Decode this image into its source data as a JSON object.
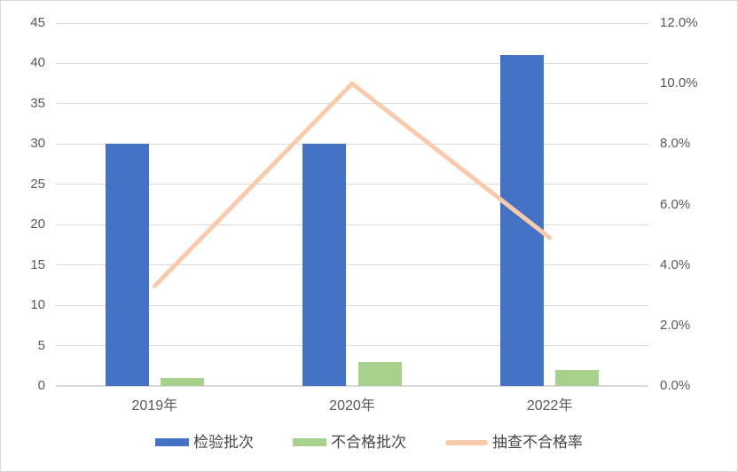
{
  "chart": {
    "background": "#ffffff",
    "border_color": "#d9d9d9",
    "gridline_color": "#d9d9d9",
    "axis_line_color": "#d9d9d9",
    "tick_text_color": "#595959",
    "legend_text_color": "#474747"
  },
  "chart_data": {
    "type": "bar",
    "subtype": "combo-bar-line",
    "title": "",
    "categories": [
      "2019年",
      "2020年",
      "2022年"
    ],
    "series": [
      {
        "name": "检验批次",
        "type": "bar",
        "axis": "left",
        "color": "#4472c4",
        "values": [
          30,
          30,
          41
        ]
      },
      {
        "name": "不合格批次",
        "type": "bar",
        "axis": "left",
        "color": "#a9d18e",
        "values": [
          1,
          3,
          2
        ]
      },
      {
        "name": "抽查不合格率",
        "type": "line",
        "axis": "right",
        "color": "#f8cbad",
        "values": [
          3.3,
          10.0,
          4.9
        ],
        "unit": "%"
      }
    ],
    "left_axis": {
      "min": 0,
      "max": 45,
      "step": 5,
      "tick_labels": [
        "0",
        "5",
        "10",
        "15",
        "20",
        "25",
        "30",
        "35",
        "40",
        "45"
      ]
    },
    "right_axis": {
      "min": 0,
      "max": 12,
      "step": 2,
      "tick_labels": [
        "0.0%",
        "2.0%",
        "4.0%",
        "6.0%",
        "8.0%",
        "10.0%",
        "12.0%"
      ]
    },
    "legend": {
      "position": "bottom",
      "entries": [
        "检验批次",
        "不合格批次",
        "抽查不合格率"
      ]
    },
    "grid": true
  }
}
